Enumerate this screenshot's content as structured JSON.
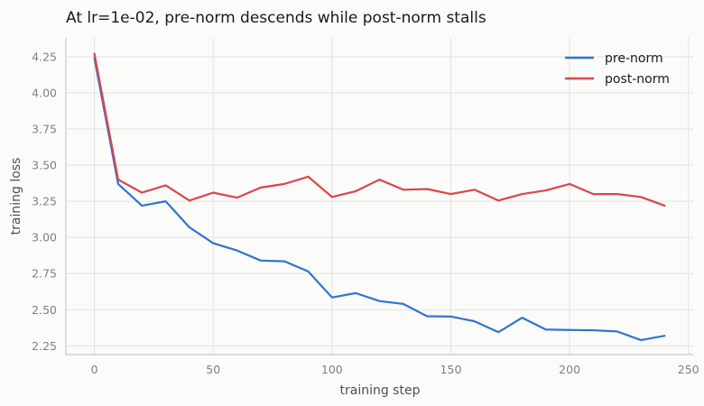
{
  "chart_data": {
    "type": "line",
    "title": "At lr=1e-02, pre-norm descends while post-norm stalls",
    "xlabel": "training step",
    "ylabel": "training loss",
    "xlim": [
      -12,
      252
    ],
    "ylim": [
      2.19,
      4.38
    ],
    "xticks": [
      0,
      50,
      100,
      150,
      200,
      250
    ],
    "yticks": [
      2.25,
      2.5,
      2.75,
      3.0,
      3.25,
      3.5,
      3.75,
      4.0,
      4.25
    ],
    "grid": true,
    "legend_position": "top-right",
    "x": [
      0,
      10,
      20,
      30,
      40,
      50,
      60,
      70,
      80,
      90,
      100,
      110,
      120,
      130,
      140,
      150,
      160,
      170,
      180,
      190,
      200,
      210,
      220,
      230,
      240
    ],
    "series": [
      {
        "name": "pre-norm",
        "color": "#2f74d0",
        "values": [
          4.24,
          3.37,
          3.22,
          3.25,
          3.07,
          2.96,
          2.91,
          2.84,
          2.835,
          2.765,
          2.585,
          2.615,
          2.56,
          2.54,
          2.455,
          2.453,
          2.42,
          2.345,
          2.445,
          2.363,
          2.36,
          2.358,
          2.35,
          2.29,
          2.32
        ]
      },
      {
        "name": "post-norm",
        "color": "#d9464a",
        "values": [
          4.27,
          3.4,
          3.31,
          3.36,
          3.255,
          3.31,
          3.275,
          3.345,
          3.37,
          3.42,
          3.28,
          3.32,
          3.4,
          3.33,
          3.335,
          3.3,
          3.33,
          3.255,
          3.3,
          3.325,
          3.37,
          3.3,
          3.3,
          3.28,
          3.22
        ]
      }
    ]
  }
}
